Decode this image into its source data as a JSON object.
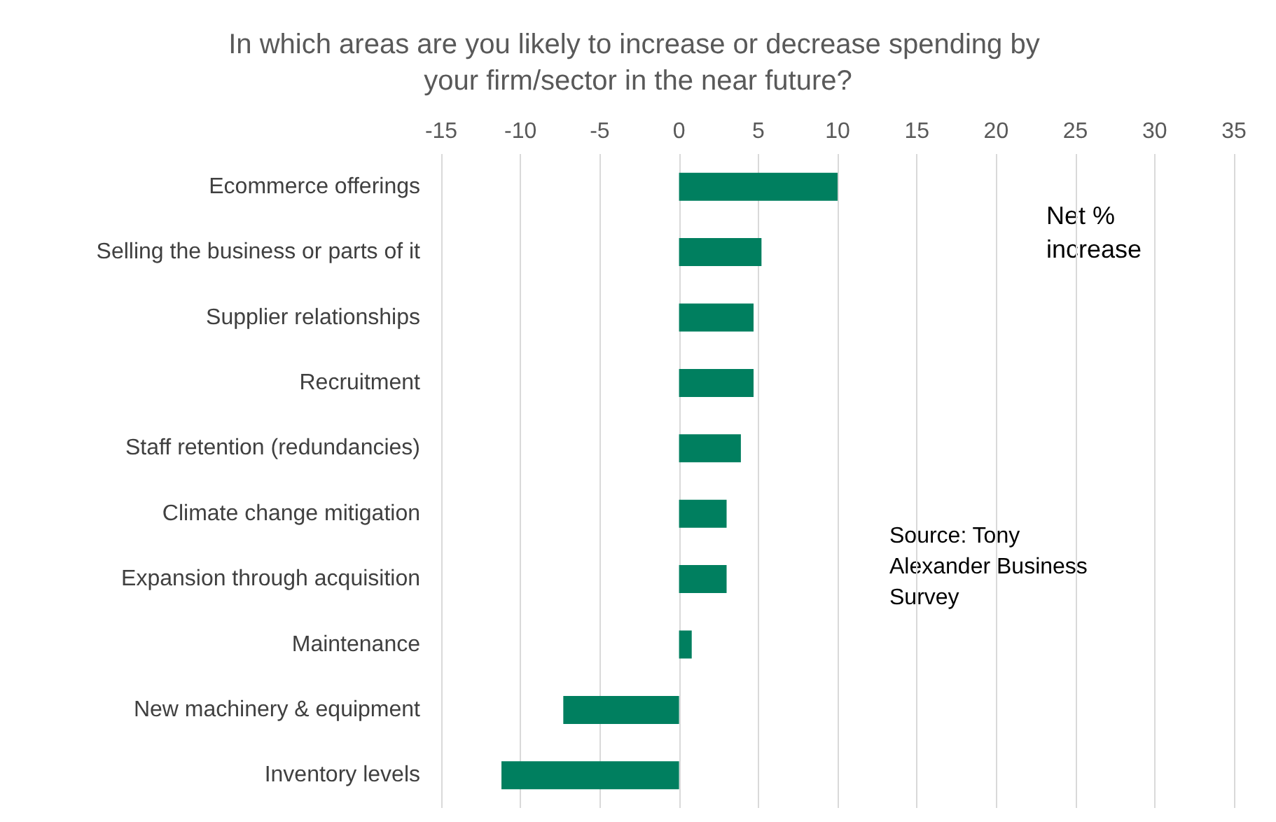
{
  "chart_data": {
    "type": "bar",
    "orientation": "horizontal",
    "title": "In which areas are you likely to increase or decrease spending by your firm/sector in the near future?",
    "categories": [
      "Ecommerce offerings",
      "Selling the business or parts of it",
      "Supplier relationships",
      "Recruitment",
      "Staff retention (redundancies)",
      "Climate change mitigation",
      "Expansion through acquisition",
      "Maintenance",
      "New machinery & equipment",
      "Inventory levels"
    ],
    "values": [
      10,
      5.2,
      4.7,
      4.7,
      3.9,
      3.0,
      3.0,
      0.8,
      -7.3,
      -11.2
    ],
    "color": "#007f5f",
    "xlim": [
      -15,
      35
    ],
    "xticks": [
      -15,
      -10,
      -5,
      0,
      5,
      10,
      15,
      20,
      25,
      30,
      35
    ],
    "grid": "x",
    "annotations": [
      "Net % increase",
      "Source: Tony Alexander Business Survey"
    ]
  }
}
